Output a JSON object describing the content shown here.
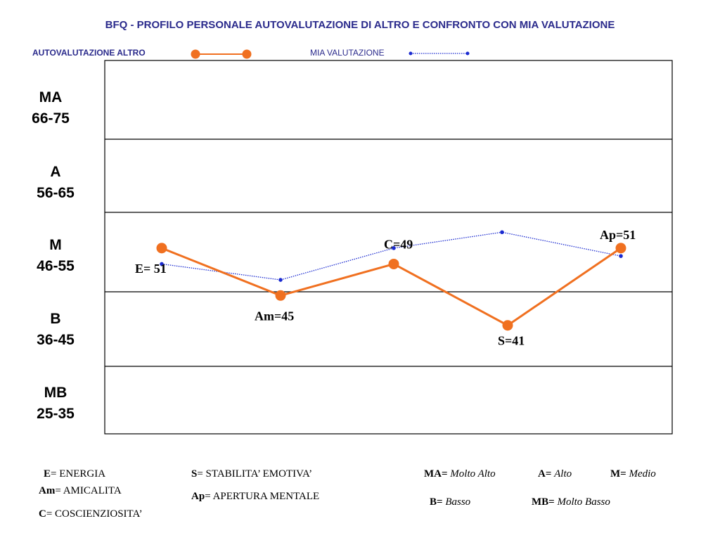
{
  "title": "BFQ - PROFILO PERSONALE AUTOVALUTAZIONE DI ALTRO E CONFRONTO CON MIA VALUTAZIONE",
  "legend": {
    "altro_label": "AUTOVALUTAZIONE ALTRO",
    "mia_label": "MIA VALUTAZIONE"
  },
  "colors": {
    "altro": "#f07020",
    "mia": "#1a2ad0",
    "title": "#2b2b8c",
    "frame": "#000000"
  },
  "bands": [
    {
      "code": "MA",
      "range": "66-75"
    },
    {
      "code": "A",
      "range": "56-65"
    },
    {
      "code": "M",
      "range": "46-55"
    },
    {
      "code": "B",
      "range": "36-45"
    },
    {
      "code": "MB",
      "range": "25-35"
    }
  ],
  "chart_data": {
    "type": "line",
    "title": "BFQ - PROFILO PERSONALE AUTOVALUTAZIONE DI ALTRO E CONFRONTO CON MIA VALUTAZIONE",
    "categories": [
      "E",
      "Am",
      "C",
      "S",
      "Ap"
    ],
    "ylim": [
      25,
      75
    ],
    "y_bands": [
      [
        66,
        75
      ],
      [
        56,
        65
      ],
      [
        46,
        55
      ],
      [
        36,
        45
      ],
      [
        25,
        35
      ]
    ],
    "series": [
      {
        "name": "AUTOVALUTAZIONE ALTRO",
        "values": [
          51,
          45,
          49,
          41,
          51
        ],
        "labels": [
          "E= 51",
          "Am=45",
          "C=49",
          "S=41",
          "Ap=51"
        ],
        "color": "#f07020",
        "style": "solid-thick-large-markers"
      },
      {
        "name": "MIA VALUTAZIONE",
        "values": [
          49,
          47,
          51,
          53,
          50
        ],
        "color": "#1a2ad0",
        "style": "dotted-small-markers"
      }
    ],
    "grid": "horizontal band lines",
    "legend_position": "top"
  },
  "footer": {
    "e_key": "E",
    "e_text": "= ENERGIA",
    "am_key": "Am",
    "am_text": "= AMICALITA",
    "c_key": "C",
    "c_text": "= COSCIENZIOSITA’",
    "s_key": "S",
    "s_text": "= STABILITA’ EMOTIVA’",
    "ap_key": "Ap",
    "ap_text": "= APERTURA MENTALE",
    "ma_key": "MA=",
    "ma_text": "Molto Alto",
    "a_key": "A=",
    "a_text": "Alto",
    "m_key": "M=",
    "m_text": "Medio",
    "b_key": "B=",
    "b_text": "Basso",
    "mb_key": "MB=",
    "mb_text": "Molto Basso"
  }
}
